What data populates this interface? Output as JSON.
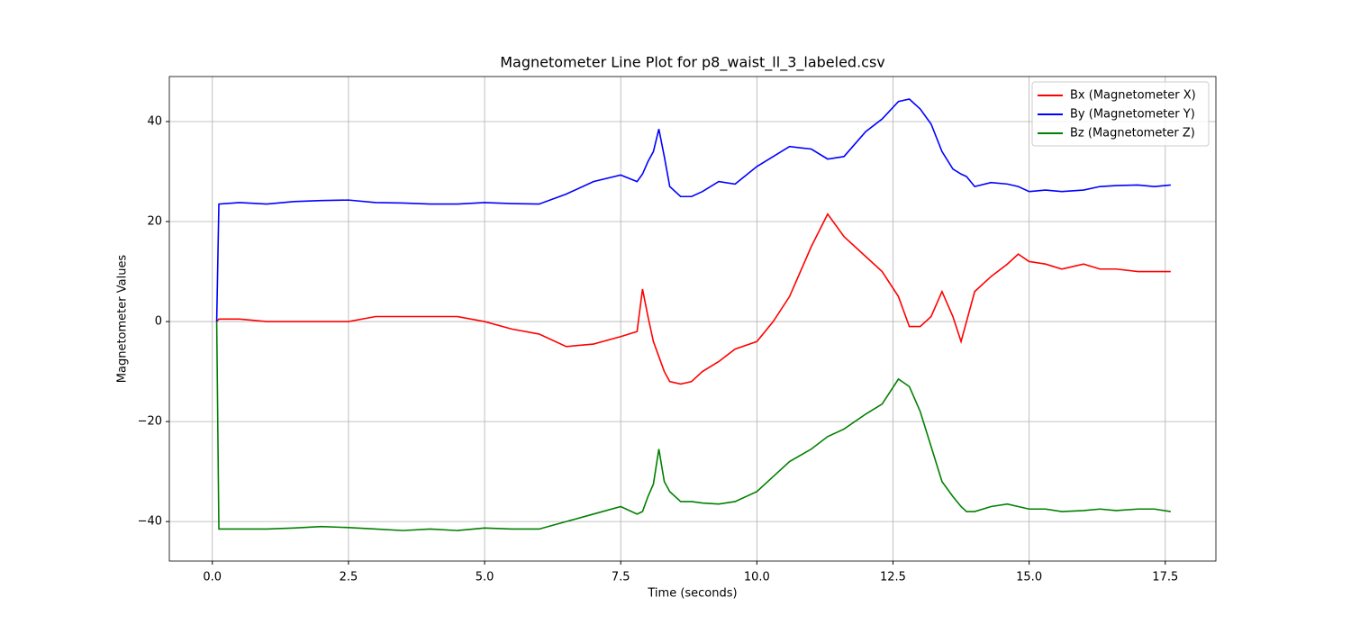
{
  "chart_data": {
    "type": "line",
    "title": "Magnetometer Line Plot for p8_waist_ll_3_labeled.csv",
    "x_label": "Time (seconds)",
    "y_label": "Magnetometer Values",
    "x": [
      0.08,
      0.12,
      0.5,
      1.0,
      1.5,
      2.0,
      2.5,
      3.0,
      3.5,
      4.0,
      4.5,
      5.0,
      5.5,
      6.0,
      6.5,
      7.0,
      7.5,
      7.8,
      7.9,
      8.0,
      8.1,
      8.2,
      8.3,
      8.4,
      8.6,
      8.8,
      9.0,
      9.3,
      9.6,
      10.0,
      10.3,
      10.6,
      11.0,
      11.3,
      11.6,
      12.0,
      12.3,
      12.6,
      12.8,
      13.0,
      13.2,
      13.4,
      13.6,
      13.75,
      13.85,
      14.0,
      14.3,
      14.6,
      14.8,
      15.0,
      15.3,
      15.6,
      16.0,
      16.3,
      16.6,
      17.0,
      17.3,
      17.6
    ],
    "series": [
      {
        "name": "Bx (Magnetometer X)",
        "color": "#ff0000",
        "values": [
          0,
          0.5,
          0.5,
          0,
          0,
          0,
          0,
          1,
          1,
          1,
          1,
          0,
          -1.5,
          -2.5,
          -5,
          -4.5,
          -3,
          -2,
          6.5,
          1,
          -4,
          -7,
          -10,
          -12,
          -12.5,
          -12,
          -10,
          -8,
          -5.5,
          -4,
          0,
          5,
          15,
          21.5,
          17,
          13,
          10,
          5,
          -1,
          -1,
          1,
          6,
          1,
          -4,
          0,
          6,
          9,
          11.5,
          13.5,
          12,
          11.5,
          10.5,
          11.5,
          10.5,
          10.5,
          10,
          10,
          10
        ]
      },
      {
        "name": "By (Magnetometer Y)",
        "color": "#0000ff",
        "values": [
          0,
          23.5,
          23.8,
          23.5,
          24,
          24.2,
          24.3,
          23.8,
          23.7,
          23.5,
          23.5,
          23.8,
          23.6,
          23.5,
          25.5,
          28,
          29.3,
          28,
          29.5,
          32,
          34,
          38.5,
          33,
          27,
          25,
          25,
          26,
          28,
          27.5,
          31,
          33,
          35,
          34.5,
          32.5,
          33,
          38,
          40.5,
          44,
          44.5,
          42.5,
          39.5,
          34,
          30.5,
          29.5,
          29,
          27,
          27.8,
          27.5,
          27,
          26,
          26.3,
          26,
          26.3,
          27,
          27.2,
          27.3,
          27,
          27.3
        ]
      },
      {
        "name": "Bz (Magnetometer Z)",
        "color": "#008000",
        "values": [
          0,
          -41.5,
          -41.5,
          -41.5,
          -41.3,
          -41,
          -41.2,
          -41.5,
          -41.8,
          -41.5,
          -41.8,
          -41.3,
          -41.5,
          -41.5,
          -40,
          -38.5,
          -37,
          -38.5,
          -38,
          -35,
          -32.5,
          -25.5,
          -32,
          -34,
          -36,
          -36,
          -36.3,
          -36.5,
          -36,
          -34,
          -31,
          -28,
          -25.5,
          -23,
          -21.5,
          -18.5,
          -16.5,
          -11.5,
          -13,
          -18,
          -25,
          -32,
          -35,
          -37,
          -38,
          -38,
          -37,
          -36.5,
          -37,
          -37.5,
          -37.5,
          -38,
          -37.8,
          -37.5,
          -37.8,
          -37.5,
          -37.5,
          -38
        ]
      }
    ],
    "xlim": [
      -0.79,
      18.43
    ],
    "ylim": [
      -47.9,
      49.0
    ],
    "xticks": [
      {
        "value": 0,
        "label": "0.0"
      },
      2.5,
      {
        "value": 5,
        "label": "5.0"
      },
      7.5,
      {
        "value": 10,
        "label": "10.0"
      },
      12.5,
      {
        "value": 15,
        "label": "15.0"
      },
      17.5
    ],
    "yticks": [
      {
        "value": -40,
        "label": "−40"
      },
      {
        "value": -20,
        "label": "−20"
      },
      0,
      20,
      40
    ],
    "grid": true,
    "legend": "upper-right"
  }
}
